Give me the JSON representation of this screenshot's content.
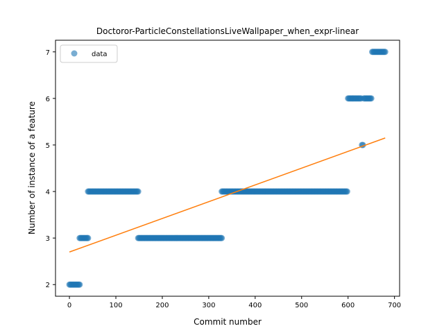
{
  "chart_data": {
    "type": "scatter",
    "title": "Doctoror-ParticleConstellationsLiveWallpaper_when_expr-linear",
    "xlabel": "Commit number",
    "ylabel": "Number of instance of a feature",
    "xlim": [
      -30,
      711
    ],
    "ylim": [
      1.75,
      7.25
    ],
    "xticks": [
      0,
      100,
      200,
      300,
      400,
      500,
      600,
      700
    ],
    "yticks": [
      2,
      3,
      4,
      5,
      6,
      7
    ],
    "legend": {
      "position": "upper-left",
      "entries": [
        "data"
      ]
    },
    "colors": {
      "scatter": "#1f77b4",
      "fit": "#ff7f0e"
    },
    "grid": false,
    "series": [
      {
        "name": "data",
        "kind": "scatter",
        "segments": [
          {
            "x_start": 0,
            "x_end": 22,
            "y": 2
          },
          {
            "x_start": 22,
            "x_end": 40,
            "y": 3
          },
          {
            "x_start": 40,
            "x_end": 148,
            "y": 4
          },
          {
            "x_start": 148,
            "x_end": 328,
            "y": 3
          },
          {
            "x_start": 328,
            "x_end": 598,
            "y": 4
          },
          {
            "x_start": 600,
            "x_end": 628,
            "y": 6
          },
          {
            "x_start": 630,
            "x_end": 632,
            "y": 5
          },
          {
            "x_start": 634,
            "x_end": 650,
            "y": 6
          },
          {
            "x_start": 652,
            "x_end": 680,
            "y": 7
          }
        ]
      },
      {
        "kind": "line",
        "x": [
          0,
          680
        ],
        "y": [
          2.7,
          5.15
        ]
      }
    ]
  }
}
